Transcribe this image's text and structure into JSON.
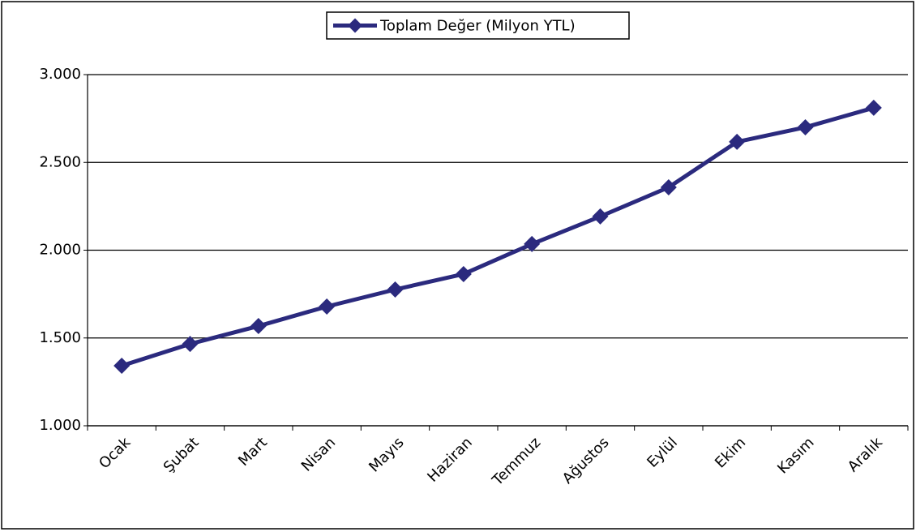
{
  "chart_data": {
    "type": "line",
    "categories": [
      "Ocak",
      "Şubat",
      "Mart",
      "Nisan",
      "Mayıs",
      "Haziran",
      "Temmuz",
      "Ağustos",
      "Eylül",
      "Ekim",
      "Kasım",
      "Aralık"
    ],
    "series": [
      {
        "name": "Toplam Değer (Milyon YTL)",
        "color": "#2b2a7e",
        "values": [
          1342,
          1466,
          1568,
          1679,
          1776,
          1864,
          2035,
          2192,
          2358,
          2617,
          2700,
          2811
        ]
      }
    ],
    "ylim": [
      1000,
      3000
    ],
    "yticks": [
      {
        "value": 1000,
        "label": "1.000"
      },
      {
        "value": 1500,
        "label": "1.500"
      },
      {
        "value": 2000,
        "label": "2.000"
      },
      {
        "value": 2500,
        "label": "2.500"
      },
      {
        "value": 3000,
        "label": "3.000"
      }
    ],
    "grid": true,
    "legend": "top"
  }
}
